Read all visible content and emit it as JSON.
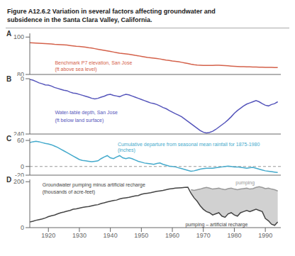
{
  "title": [
    "Figure  A12.6.2    Variation in several factors affecting groundwater and",
    "subsidence in the Santa Clara Valley, California."
  ],
  "chart_data": [
    {
      "type": "line",
      "panel": "A",
      "annotations": [
        "Benchmark P7 elevation, San Jose",
        "(ft above sea level)"
      ],
      "x": [
        1914,
        1915,
        1916,
        1917,
        1918,
        1919,
        1920,
        1921,
        1922,
        1923,
        1924,
        1925,
        1926,
        1927,
        1928,
        1929,
        1930,
        1931,
        1932,
        1933,
        1934,
        1935,
        1936,
        1937,
        1938,
        1939,
        1940,
        1941,
        1942,
        1943,
        1944,
        1945,
        1946,
        1947,
        1948,
        1949,
        1950,
        1951,
        1952,
        1953,
        1954,
        1955,
        1956,
        1957,
        1958,
        1959,
        1960,
        1961,
        1962,
        1963,
        1964,
        1965,
        1966,
        1967,
        1968,
        1969,
        1970,
        1971,
        1972,
        1973,
        1974,
        1975,
        1976,
        1977,
        1978,
        1979,
        1980,
        1981,
        1982,
        1983,
        1984,
        1985,
        1986,
        1987,
        1988,
        1989,
        1990,
        1991,
        1992,
        1993,
        1994
      ],
      "series": [
        {
          "color": "#d4614a",
          "values": [
            97.0,
            96.9,
            96.8,
            96.7,
            96.6,
            96.5,
            96.4,
            96.3,
            96.1,
            96.0,
            95.9,
            95.8,
            95.7,
            95.5,
            95.3,
            95.1,
            95.0,
            94.8,
            94.6,
            94.3,
            94.1,
            93.8,
            93.5,
            93.2,
            92.9,
            92.6,
            92.3,
            92.0,
            91.7,
            91.4,
            91.2,
            91.0,
            90.8,
            90.5,
            90.2,
            90.0,
            89.7,
            89.4,
            89.1,
            88.9,
            88.7,
            88.5,
            88.3,
            88.0,
            87.7,
            87.5,
            87.2,
            87.0,
            86.8,
            86.5,
            86.2,
            85.9,
            85.5,
            85.2,
            85.0,
            84.9,
            84.8,
            84.8,
            84.8,
            84.8,
            84.9,
            84.9,
            84.8,
            84.7,
            84.6,
            84.5,
            84.4,
            84.3,
            84.2,
            84.2,
            84.1,
            84.1,
            84.0,
            84.0,
            83.9,
            83.9,
            83.8,
            83.8,
            83.8,
            83.7,
            83.7
          ]
        }
      ],
      "xlim": [
        1914,
        1995
      ],
      "ylim": [
        80,
        102
      ],
      "yticks": [
        80,
        100
      ],
      "tick_labels": "y"
    },
    {
      "type": "line",
      "panel": "B",
      "annotations": [
        "Water-table depth, San Jose",
        "(ft below land surface)"
      ],
      "x": [
        1914,
        1915,
        1916,
        1917,
        1918,
        1919,
        1920,
        1921,
        1922,
        1923,
        1924,
        1925,
        1926,
        1927,
        1928,
        1929,
        1930,
        1931,
        1932,
        1933,
        1934,
        1935,
        1936,
        1937,
        1938,
        1939,
        1940,
        1941,
        1942,
        1943,
        1944,
        1945,
        1946,
        1947,
        1948,
        1949,
        1950,
        1951,
        1952,
        1953,
        1954,
        1955,
        1956,
        1957,
        1958,
        1959,
        1960,
        1961,
        1962,
        1963,
        1964,
        1965,
        1966,
        1967,
        1968,
        1969,
        1970,
        1971,
        1972,
        1973,
        1974,
        1975,
        1976,
        1977,
        1978,
        1979,
        1980,
        1981,
        1982,
        1983,
        1984,
        1985,
        1986,
        1987,
        1988,
        1989,
        1990,
        1991,
        1992,
        1993,
        1994
      ],
      "series": [
        {
          "color": "#5555bb",
          "values": [
            3,
            6,
            12,
            18,
            22,
            27,
            28,
            32,
            38,
            42,
            46,
            50,
            52,
            58,
            62,
            64,
            68,
            72,
            76,
            80,
            85,
            88,
            85,
            80,
            76,
            70,
            68,
            72,
            75,
            78,
            72,
            68,
            70,
            75,
            80,
            85,
            90,
            95,
            100,
            105,
            108,
            112,
            118,
            125,
            130,
            138,
            145,
            152,
            158,
            165,
            175,
            185,
            195,
            205,
            215,
            225,
            232,
            235,
            233,
            228,
            220,
            210,
            200,
            190,
            178,
            165,
            150,
            138,
            128,
            118,
            110,
            105,
            100,
            95,
            100,
            108,
            115,
            118,
            112,
            108,
            100
          ]
        }
      ],
      "xlim": [
        1914,
        1995
      ],
      "ylim": [
        240,
        0
      ],
      "yticks": [
        0,
        240
      ],
      "tick_labels": "y"
    },
    {
      "type": "line",
      "panel": "C",
      "annotations": [
        "Cumulative departure from seasonal mean rainfall for 1875-1980",
        "(inches)"
      ],
      "x": [
        1914,
        1915,
        1916,
        1917,
        1918,
        1919,
        1920,
        1921,
        1922,
        1923,
        1924,
        1925,
        1926,
        1927,
        1928,
        1929,
        1930,
        1931,
        1932,
        1933,
        1934,
        1935,
        1936,
        1937,
        1938,
        1939,
        1940,
        1941,
        1942,
        1943,
        1944,
        1945,
        1946,
        1947,
        1948,
        1949,
        1950,
        1951,
        1952,
        1953,
        1954,
        1955,
        1956,
        1957,
        1958,
        1959,
        1960,
        1961,
        1962,
        1963,
        1964,
        1965,
        1966,
        1967,
        1968,
        1969,
        1970,
        1971,
        1972,
        1973,
        1974,
        1975,
        1976,
        1977,
        1978,
        1979,
        1980,
        1981,
        1982,
        1983,
        1984,
        1985,
        1986,
        1987,
        1988,
        1989,
        1990,
        1991,
        1992,
        1993,
        1994
      ],
      "series": [
        {
          "color": "#44aacc",
          "values": [
            55,
            57,
            58,
            57,
            55,
            53,
            52,
            50,
            47,
            44,
            40,
            36,
            32,
            28,
            24,
            20,
            16,
            14,
            13,
            12,
            11,
            12,
            13,
            18,
            22,
            25,
            20,
            18,
            22,
            25,
            20,
            18,
            20,
            18,
            15,
            12,
            10,
            8,
            7,
            6,
            5,
            7,
            8,
            5,
            3,
            1,
            0,
            -1,
            -3,
            -5,
            -7,
            -9,
            -11,
            -10,
            -8,
            -6,
            -5,
            -4,
            -4,
            -4,
            -3,
            -2,
            -1,
            0,
            1,
            0,
            -1,
            -1,
            -2,
            -3,
            -4,
            -3,
            -2,
            -4,
            -6,
            -8,
            -10,
            -11,
            -12,
            -13,
            -14
          ]
        }
      ],
      "reference_line": 0,
      "xlim": [
        1914,
        1995
      ],
      "ylim": [
        -20,
        65
      ],
      "yticks": [
        -20,
        0,
        60
      ],
      "tick_labels": "y"
    },
    {
      "type": "line",
      "panel": "D",
      "annotations": [
        "Groundwater pumping minus artificial recharge",
        "(thousands of acre-feet)",
        "pumping",
        "pumping – artificial recharge"
      ],
      "x": [
        1914,
        1915,
        1916,
        1917,
        1918,
        1919,
        1920,
        1921,
        1922,
        1923,
        1924,
        1925,
        1926,
        1927,
        1928,
        1929,
        1930,
        1931,
        1932,
        1933,
        1934,
        1935,
        1936,
        1937,
        1938,
        1939,
        1940,
        1941,
        1942,
        1943,
        1944,
        1945,
        1946,
        1947,
        1948,
        1949,
        1950,
        1951,
        1952,
        1953,
        1954,
        1955,
        1956,
        1957,
        1958,
        1959,
        1960,
        1961,
        1962,
        1963,
        1964,
        1965,
        1966,
        1967,
        1968,
        1969,
        1970,
        1971,
        1972,
        1973,
        1974,
        1975,
        1976,
        1977,
        1978,
        1979,
        1980,
        1981,
        1982,
        1983,
        1984,
        1985,
        1986,
        1987,
        1988,
        1989,
        1990,
        1991,
        1992,
        1993,
        1994
      ],
      "series": [
        {
          "color": "#444444",
          "values": [
            25,
            28,
            32,
            35,
            38,
            42,
            48,
            52,
            55,
            60,
            65,
            68,
            72,
            75,
            80,
            82,
            85,
            88,
            90,
            92,
            95,
            98,
            100,
            105,
            108,
            112,
            115,
            118,
            120,
            125,
            128,
            130,
            132,
            135,
            138,
            140,
            145,
            148,
            150,
            152,
            155,
            158,
            160,
            162,
            165,
            168,
            170,
            172,
            173,
            174,
            175,
            176,
            150,
            130,
            115,
            95,
            80,
            70,
            65,
            55,
            60,
            65,
            50,
            45,
            60,
            65,
            55,
            50,
            65,
            70,
            75,
            70,
            75,
            80,
            75,
            70,
            40,
            30,
            15,
            10,
            25
          ]
        },
        {
          "color": "#999999",
          "values": [
            null,
            null,
            null,
            null,
            null,
            null,
            null,
            null,
            null,
            null,
            null,
            null,
            null,
            null,
            null,
            null,
            null,
            null,
            null,
            null,
            null,
            null,
            null,
            null,
            null,
            null,
            null,
            null,
            null,
            null,
            null,
            null,
            null,
            null,
            null,
            null,
            null,
            null,
            null,
            null,
            null,
            null,
            null,
            null,
            null,
            null,
            null,
            null,
            null,
            null,
            null,
            null,
            165,
            162,
            165,
            168,
            172,
            175,
            172,
            168,
            170,
            172,
            168,
            165,
            170,
            172,
            168,
            165,
            168,
            170,
            172,
            168,
            170,
            175,
            178,
            175,
            170,
            172,
            168,
            165,
            160
          ]
        }
      ],
      "xlim": [
        1914,
        1995
      ],
      "xticks": [
        1920,
        1930,
        1940,
        1950,
        1960,
        1970,
        1980,
        1990
      ],
      "ylim": [
        0,
        210
      ],
      "yticks": [
        0,
        200
      ]
    }
  ]
}
